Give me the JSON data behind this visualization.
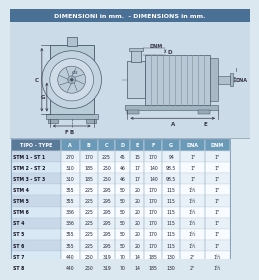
{
  "title_part1": "DIMENSIONI in mm.",
  "title_part2": "- DIMENSIONS in mm.",
  "header": [
    "TIPO - TYPE",
    "A",
    "B",
    "C",
    "D",
    "E",
    "F",
    "G",
    "DNA",
    "DNM"
  ],
  "rows": [
    [
      "STM 1 - ST 1",
      "270",
      "170",
      "225",
      "45",
      "15",
      "170",
      "94",
      "1\"",
      "1\""
    ],
    [
      "STM 2 - ST 2",
      "310",
      "185",
      "250",
      "46",
      "17",
      "140",
      "98.5",
      "1\"",
      "1\""
    ],
    [
      "STM 3 - ST 3",
      "310",
      "185",
      "250",
      "46",
      "17",
      "140",
      "98.5",
      "1\"",
      "1\""
    ],
    [
      "STM 4",
      "355",
      "225",
      "295",
      "50",
      "20",
      "170",
      "115",
      "1½",
      "1\""
    ],
    [
      "STM 5",
      "355",
      "225",
      "295",
      "50",
      "20",
      "170",
      "115",
      "1½",
      "1\""
    ],
    [
      "STM 6",
      "386",
      "225",
      "295",
      "50",
      "20",
      "170",
      "115",
      "1½",
      "1\""
    ],
    [
      "ST 4",
      "386",
      "225",
      "295",
      "50",
      "20",
      "170",
      "115",
      "1½",
      "1\""
    ],
    [
      "ST 5",
      "355",
      "225",
      "295",
      "50",
      "20",
      "170",
      "115",
      "1½",
      "1\""
    ],
    [
      "ST 6",
      "355",
      "225",
      "295",
      "50",
      "20",
      "170",
      "115",
      "1½",
      "1\""
    ],
    [
      "ST 7",
      "440",
      "250",
      "319",
      "70",
      "14",
      "185",
      "130",
      "2\"",
      "1½"
    ],
    [
      "ST 8",
      "440",
      "250",
      "319",
      "70",
      "14",
      "185",
      "130",
      "2\"",
      "1½"
    ]
  ],
  "title_bg": "#4a7096",
  "header_bg": "#6a9ab8",
  "header_text": "#ffffff",
  "type_col_bg": "#c8d8e8",
  "row_bg_alt": "#e8f0f8",
  "row_bg_white": "#f8fbff",
  "diagram_bg": "#ccdbe8",
  "outer_bg": "#dce8f0",
  "title_color": "#cc2200",
  "line_color": "#445566",
  "dim_color": "#333344"
}
